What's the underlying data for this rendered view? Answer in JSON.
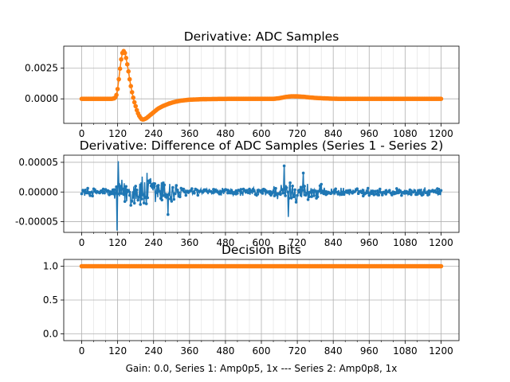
{
  "colors": {
    "blue": "#1f77b4",
    "orange": "#ff7f0e"
  },
  "xlabel": "Gain: 0.0, Series 1: Amp0p5, 1x --- Series 2: Amp0p8, 1x",
  "chart_data": [
    {
      "type": "line",
      "title": "Derivative: ADC Samples",
      "xlim": [
        -60,
        1260
      ],
      "ylim": [
        -0.002,
        0.0043
      ],
      "xticks": [
        0,
        120,
        240,
        360,
        480,
        600,
        720,
        840,
        960,
        1080,
        1200
      ],
      "xtick_labels": [
        "0",
        "120",
        "240",
        "360",
        "480",
        "600",
        "720",
        "840",
        "960",
        "1080",
        "1200"
      ],
      "yticks": [
        0.0,
        0.0025
      ],
      "ytick_labels": [
        "0.0000",
        "0.0025"
      ],
      "grid": true,
      "series": [
        {
          "name": "Series 2",
          "color": "#ff7f0e",
          "marker": "circle",
          "points": [
            [
              0,
              0
            ],
            [
              100,
              0
            ],
            [
              110,
              5e-05
            ],
            [
              115,
              0.0002
            ],
            [
              120,
              0.0008
            ],
            [
              125,
              0.0018
            ],
            [
              130,
              0.0029
            ],
            [
              135,
              0.0037
            ],
            [
              140,
              0.0039
            ],
            [
              145,
              0.0037
            ],
            [
              150,
              0.0031
            ],
            [
              155,
              0.0024
            ],
            [
              160,
              0.0016
            ],
            [
              165,
              0.0009
            ],
            [
              170,
              0.0003
            ],
            [
              175,
              -0.0002
            ],
            [
              180,
              -0.0006
            ],
            [
              185,
              -0.001
            ],
            [
              190,
              -0.0013
            ],
            [
              195,
              -0.0015
            ],
            [
              200,
              -0.00165
            ],
            [
              205,
              -0.0017
            ],
            [
              210,
              -0.00165
            ],
            [
              215,
              -0.0016
            ],
            [
              220,
              -0.0015
            ],
            [
              230,
              -0.0013
            ],
            [
              240,
              -0.0011
            ],
            [
              255,
              -0.0008
            ],
            [
              270,
              -0.0006
            ],
            [
              290,
              -0.0004
            ],
            [
              310,
              -0.00025
            ],
            [
              330,
              -0.00015
            ],
            [
              360,
              -7e-05
            ],
            [
              400,
              -3e-05
            ],
            [
              450,
              -1e-05
            ],
            [
              500,
              0
            ],
            [
              600,
              0
            ],
            [
              640,
              0
            ],
            [
              660,
              5e-05
            ],
            [
              680,
              0.00015
            ],
            [
              700,
              0.00021
            ],
            [
              720,
              0.0002
            ],
            [
              740,
              0.00017
            ],
            [
              760,
              0.00012
            ],
            [
              780,
              8e-05
            ],
            [
              800,
              5e-05
            ],
            [
              830,
              2e-05
            ],
            [
              860,
              0
            ],
            [
              1200,
              0
            ]
          ]
        }
      ]
    },
    {
      "type": "line",
      "title": "Derivative: Difference of ADC Samples (Series 1 - Series 2)",
      "xlim": [
        -60,
        1260
      ],
      "ylim": [
        -6.8e-05,
        6.2e-05
      ],
      "xticks": [
        0,
        120,
        240,
        360,
        480,
        600,
        720,
        840,
        960,
        1080,
        1200
      ],
      "xtick_labels": [
        "0",
        "120",
        "240",
        "360",
        "480",
        "600",
        "720",
        "840",
        "960",
        "1080",
        "1200"
      ],
      "yticks": [
        5e-05,
        0.0,
        -5e-05
      ],
      "ytick_labels": [
        "0.00005",
        "0.00000",
        "-0.00005"
      ],
      "grid": true,
      "series": [
        {
          "name": "Difference",
          "color": "#1f77b4",
          "marker": "circle",
          "noise": {
            "base_amplitude": 8e-06,
            "bursts": [
              {
                "x_min": 110,
                "x_max": 330,
                "amplitude": 4e-05
              },
              {
                "x_min": 630,
                "x_max": 800,
                "amplitude": 2.2e-05
              }
            ],
            "extremes": [
              [
                118,
                -6.5e-05
              ],
              [
                122,
                5.2e-05
              ],
              [
                288,
                -3.8e-05
              ],
              [
                676,
                4.4e-05
              ],
              [
                690,
                -4.2e-05
              ],
              [
                740,
                3.2e-05
              ]
            ]
          }
        }
      ]
    },
    {
      "type": "line",
      "title": "Decision Bits",
      "xlim": [
        -60,
        1260
      ],
      "ylim": [
        -0.1,
        1.1
      ],
      "xticks": [
        0,
        120,
        240,
        360,
        480,
        600,
        720,
        840,
        960,
        1080,
        1200
      ],
      "xtick_labels": [
        "0",
        "120",
        "240",
        "360",
        "480",
        "600",
        "720",
        "840",
        "960",
        "1080",
        "1200"
      ],
      "yticks": [
        1.0,
        0.5,
        0.0
      ],
      "ytick_labels": [
        "1.0",
        "0.5",
        "0.0"
      ],
      "grid": true,
      "series": [
        {
          "name": "Decision Bits",
          "color": "#ff7f0e",
          "marker": "circle",
          "points": [
            [
              0,
              1
            ],
            [
              1200,
              1
            ]
          ]
        }
      ]
    }
  ]
}
